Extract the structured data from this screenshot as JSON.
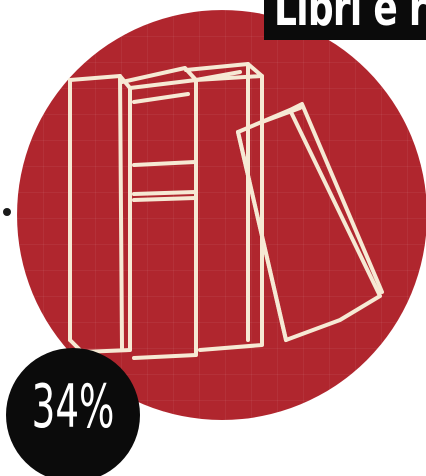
{
  "title_badge": {
    "text": "Libri e r"
  },
  "percent_badge": {
    "value": "34%"
  },
  "illustration": {
    "icon": "books-icon"
  },
  "colors": {
    "disc": "#b0262e",
    "line_art": "#f6e9d4",
    "badge": "#0b0b0b",
    "badge_text": "#ffffff"
  }
}
